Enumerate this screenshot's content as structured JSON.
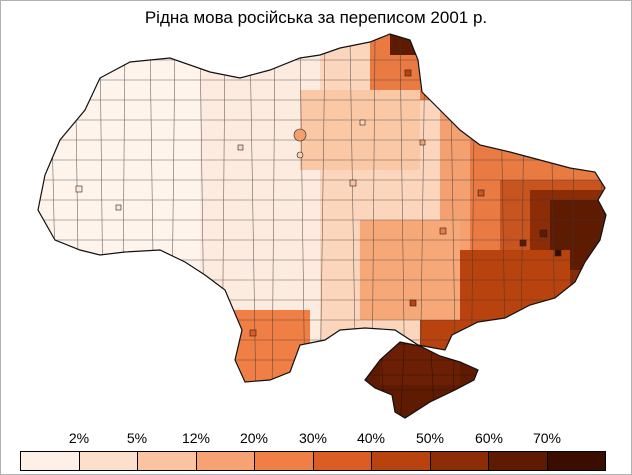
{
  "title": "Рідна мова російська за переписом 2001 р.",
  "legend": {
    "labels": [
      "2%",
      "5%",
      "12%",
      "20%",
      "30%",
      "40%",
      "50%",
      "60%",
      "70%"
    ],
    "colors": [
      "#fef0e6",
      "#fde0cc",
      "#fbc3a0",
      "#f7a272",
      "#f07f45",
      "#dc5d24",
      "#b9430f",
      "#8c2d07",
      "#5e1b02",
      "#3b0d00"
    ]
  },
  "map": {
    "region": "Ukraine",
    "features": [
      "raion-boundaries",
      "city-markers",
      "crimea-peninsula"
    ]
  }
}
